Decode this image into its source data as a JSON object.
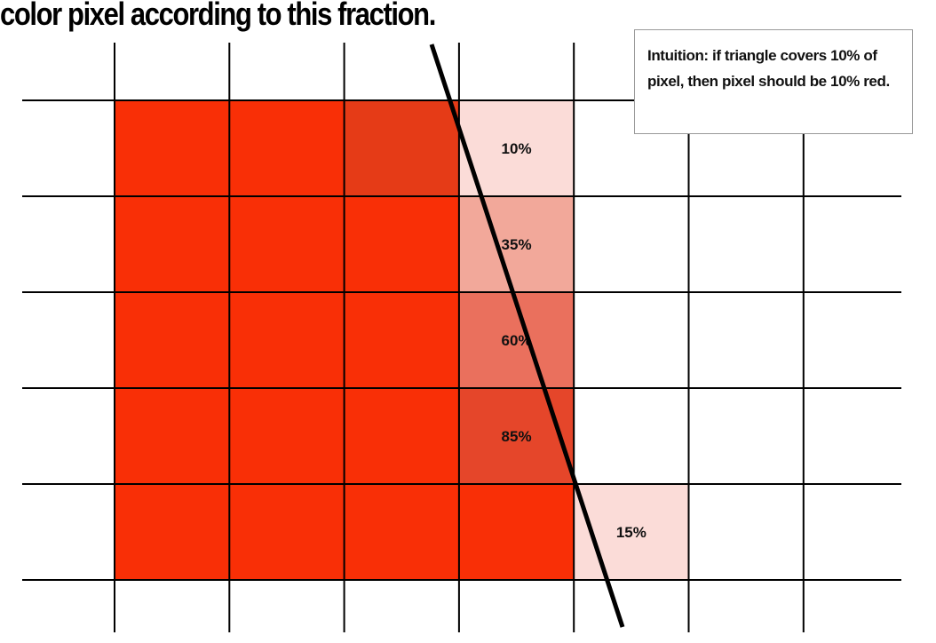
{
  "title": "color pixel according to this fraction.",
  "callout": {
    "text": "Intuition: if triangle covers 10% of pixel, then pixel should be 10% red."
  },
  "colors": {
    "full_red": "#f92f06",
    "dark_red": "#e53b17",
    "cover_10": "#fbdcd8",
    "cover_35": "#f2a89a",
    "cover_60": "#ea705d",
    "cover_85": "#e5462a",
    "cover_15": "#fbdcd8",
    "grid": "#000000",
    "edge": "#000000"
  },
  "grid": {
    "columns": 7,
    "rows": 5
  },
  "pixels": {
    "full": [
      [
        0,
        0
      ],
      [
        1,
        0
      ],
      [
        0,
        1
      ],
      [
        1,
        1
      ],
      [
        2,
        1
      ],
      [
        0,
        2
      ],
      [
        1,
        2
      ],
      [
        2,
        2
      ],
      [
        0,
        3
      ],
      [
        1,
        3
      ],
      [
        2,
        3
      ],
      [
        0,
        4
      ],
      [
        1,
        4
      ],
      [
        2,
        4
      ],
      [
        3,
        4
      ]
    ],
    "dark": [
      [
        2,
        0
      ]
    ],
    "partial": [
      {
        "col": 3,
        "row": 0,
        "label": "10%",
        "color_key": "cover_10"
      },
      {
        "col": 3,
        "row": 1,
        "label": "35%",
        "color_key": "cover_35"
      },
      {
        "col": 3,
        "row": 2,
        "label": "60%",
        "color_key": "cover_60"
      },
      {
        "col": 3,
        "row": 3,
        "label": "85%",
        "color_key": "cover_85"
      },
      {
        "col": 4,
        "row": 4,
        "label": "15%",
        "color_key": "cover_15"
      }
    ]
  }
}
